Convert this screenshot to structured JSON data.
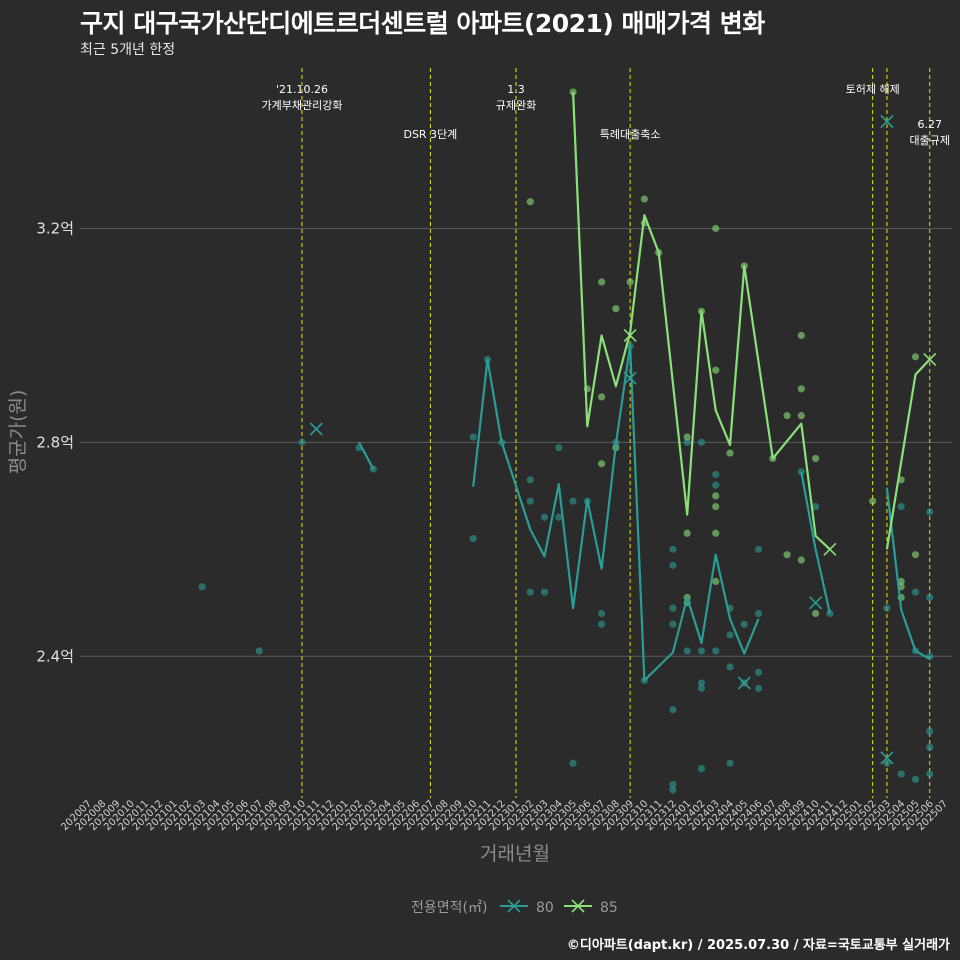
{
  "header": {
    "title": "구지 대구국가산단디에트르더센트럴 아파트(2021) 매매가격 변화",
    "subtitle": "최근 5개년 한정"
  },
  "footer": {
    "caption": "©디아파트(dapt.kr) / 2025.07.30 / 자료=국토교통부 실거래가"
  },
  "colors": {
    "background": "#2b2b2b",
    "grid": "#5a5a5a",
    "event_line": "#e6e600",
    "series_80": "#2a9d96",
    "series_85": "#8be07a"
  },
  "chart_data": {
    "type": "line",
    "title": "구지 대구국가산단디에트르더센트럴 아파트(2021) 매매가격 변화",
    "subtitle": "최근 5개년 한정",
    "xlabel": "거래년월",
    "ylabel": "평균가(원)",
    "legend_title": "전용면적(㎡)",
    "legend_position": "bottom",
    "grid": true,
    "categories": [
      "202007",
      "202008",
      "202009",
      "202010",
      "202011",
      "202012",
      "202101",
      "202102",
      "202103",
      "202104",
      "202105",
      "202106",
      "202107",
      "202108",
      "202109",
      "202110",
      "202111",
      "202112",
      "202201",
      "202202",
      "202203",
      "202204",
      "202205",
      "202206",
      "202207",
      "202208",
      "202209",
      "202210",
      "202211",
      "202212",
      "202301",
      "202302",
      "202303",
      "202304",
      "202305",
      "202306",
      "202307",
      "202308",
      "202309",
      "202310",
      "202311",
      "202312",
      "202401",
      "202402",
      "202403",
      "202404",
      "202405",
      "202406",
      "202407",
      "202408",
      "202409",
      "202410",
      "202411",
      "202412",
      "202501",
      "202502",
      "202503",
      "202504",
      "202505",
      "202506",
      "202507"
    ],
    "y_ticks": [
      2.4,
      2.8,
      3.2
    ],
    "y_tick_labels": [
      "2.4억",
      "2.8억",
      "3.2억"
    ],
    "ylim": [
      2.135,
      3.515
    ],
    "series": [
      {
        "name": "80",
        "line": [
          {
            "x": "202202",
            "y": 2.8
          },
          {
            "x": "202203",
            "y": 2.75
          },
          {
            "x": "202210",
            "y": 2.717
          },
          {
            "x": "202211",
            "y": 2.955
          },
          {
            "x": "202212",
            "y": 2.8
          },
          {
            "x": "202302",
            "y": 2.637
          },
          {
            "x": "202303",
            "y": 2.587
          },
          {
            "x": "202304",
            "y": 2.722
          },
          {
            "x": "202305",
            "y": 2.49
          },
          {
            "x": "202306",
            "y": 2.693
          },
          {
            "x": "202307",
            "y": 2.564
          },
          {
            "x": "202308",
            "y": 2.797
          },
          {
            "x": "202309",
            "y": 2.981
          },
          {
            "x": "202310",
            "y": 2.355
          },
          {
            "x": "202312",
            "y": 2.407
          },
          {
            "x": "202401",
            "y": 2.51
          },
          {
            "x": "202402",
            "y": 2.425
          },
          {
            "x": "202403",
            "y": 2.59
          },
          {
            "x": "202404",
            "y": 2.47
          },
          {
            "x": "202405",
            "y": 2.405
          },
          {
            "x": "202406",
            "y": 2.47
          },
          {
            "x": "202409",
            "y": 2.745
          },
          {
            "x": "202410",
            "y": 2.6
          },
          {
            "x": "202411",
            "y": 2.48
          },
          {
            "x": "202503",
            "y": 2.715
          },
          {
            "x": "202504",
            "y": 2.487
          },
          {
            "x": "202505",
            "y": 2.41
          },
          {
            "x": "202506",
            "y": 2.395
          }
        ],
        "points": [
          {
            "x": "202103",
            "y": 2.53
          },
          {
            "x": "202107",
            "y": 2.41
          },
          {
            "x": "202110",
            "y": 2.8
          },
          {
            "x": "202202",
            "y": 2.79
          },
          {
            "x": "202203",
            "y": 2.75
          },
          {
            "x": "202210",
            "y": 2.81
          },
          {
            "x": "202210",
            "y": 2.62
          },
          {
            "x": "202211",
            "y": 2.955
          },
          {
            "x": "202212",
            "y": 2.8
          },
          {
            "x": "202302",
            "y": 2.73
          },
          {
            "x": "202302",
            "y": 2.69
          },
          {
            "x": "202302",
            "y": 2.52
          },
          {
            "x": "202303",
            "y": 2.66
          },
          {
            "x": "202303",
            "y": 2.52
          },
          {
            "x": "202304",
            "y": 2.79
          },
          {
            "x": "202304",
            "y": 2.66
          },
          {
            "x": "202305",
            "y": 2.2
          },
          {
            "x": "202305",
            "y": 2.69
          },
          {
            "x": "202306",
            "y": 2.69
          },
          {
            "x": "202307",
            "y": 2.46
          },
          {
            "x": "202307",
            "y": 2.48
          },
          {
            "x": "202308",
            "y": 2.8
          },
          {
            "x": "202309",
            "y": 2.98
          },
          {
            "x": "202310",
            "y": 2.355
          },
          {
            "x": "202312",
            "y": 2.6
          },
          {
            "x": "202312",
            "y": 2.57
          },
          {
            "x": "202312",
            "y": 2.49
          },
          {
            "x": "202312",
            "y": 2.46
          },
          {
            "x": "202312",
            "y": 2.3
          },
          {
            "x": "202312",
            "y": 2.15
          },
          {
            "x": "202312",
            "y": 2.16
          },
          {
            "x": "202401",
            "y": 2.8
          },
          {
            "x": "202401",
            "y": 2.41
          },
          {
            "x": "202402",
            "y": 2.8
          },
          {
            "x": "202402",
            "y": 2.41
          },
          {
            "x": "202402",
            "y": 2.35
          },
          {
            "x": "202402",
            "y": 2.34
          },
          {
            "x": "202402",
            "y": 2.19
          },
          {
            "x": "202403",
            "y": 2.74
          },
          {
            "x": "202403",
            "y": 2.72
          },
          {
            "x": "202403",
            "y": 2.41
          },
          {
            "x": "202404",
            "y": 2.49
          },
          {
            "x": "202404",
            "y": 2.44
          },
          {
            "x": "202404",
            "y": 2.38
          },
          {
            "x": "202404",
            "y": 2.2
          },
          {
            "x": "202405",
            "y": 2.35
          },
          {
            "x": "202405",
            "y": 2.46
          },
          {
            "x": "202406",
            "y": 2.37
          },
          {
            "x": "202406",
            "y": 2.34
          },
          {
            "x": "202406",
            "y": 2.6
          },
          {
            "x": "202406",
            "y": 2.48
          },
          {
            "x": "202409",
            "y": 2.745
          },
          {
            "x": "202410",
            "y": 2.68
          },
          {
            "x": "202411",
            "y": 2.48
          },
          {
            "x": "202503",
            "y": 2.49
          },
          {
            "x": "202503",
            "y": 2.2
          },
          {
            "x": "202504",
            "y": 2.68
          },
          {
            "x": "202504",
            "y": 2.18
          },
          {
            "x": "202505",
            "y": 2.52
          },
          {
            "x": "202505",
            "y": 2.41
          },
          {
            "x": "202505",
            "y": 2.17
          },
          {
            "x": "202506",
            "y": 2.67
          },
          {
            "x": "202506",
            "y": 2.51
          },
          {
            "x": "202506",
            "y": 2.4
          },
          {
            "x": "202506",
            "y": 2.26
          },
          {
            "x": "202506",
            "y": 2.23
          },
          {
            "x": "202506",
            "y": 2.18
          }
        ],
        "x_marks": [
          {
            "x": "202111",
            "y": 2.825
          },
          {
            "x": "202309",
            "y": 2.92
          },
          {
            "x": "202405",
            "y": 2.35
          },
          {
            "x": "202410",
            "y": 2.5
          },
          {
            "x": "202503",
            "y": 3.4
          },
          {
            "x": "202503",
            "y": 2.21
          }
        ]
      },
      {
        "name": "85",
        "line": [
          {
            "x": "202302",
            "y": 3.25
          },
          {
            "x": "202305",
            "y": 3.455
          },
          {
            "x": "202306",
            "y": 2.83
          },
          {
            "x": "202307",
            "y": 3.0
          },
          {
            "x": "202308",
            "y": 2.905
          },
          {
            "x": "202309",
            "y": 3.005
          },
          {
            "x": "202310",
            "y": 3.225
          },
          {
            "x": "202311",
            "y": 3.155
          },
          {
            "x": "202401",
            "y": 2.665
          },
          {
            "x": "202402",
            "y": 3.045
          },
          {
            "x": "202403",
            "y": 2.86
          },
          {
            "x": "202404",
            "y": 2.795
          },
          {
            "x": "202405",
            "y": 3.13
          },
          {
            "x": "202407",
            "y": 2.77
          },
          {
            "x": "202409",
            "y": 2.835
          },
          {
            "x": "202410",
            "y": 2.625
          },
          {
            "x": "202411",
            "y": 2.6
          },
          {
            "x": "202503",
            "y": 2.6
          },
          {
            "x": "202505",
            "y": 2.927
          },
          {
            "x": "202506",
            "y": 2.955
          }
        ],
        "points": [
          {
            "x": "202302",
            "y": 3.25
          },
          {
            "x": "202305",
            "y": 3.455
          },
          {
            "x": "202306",
            "y": 2.9
          },
          {
            "x": "202307",
            "y": 2.76
          },
          {
            "x": "202307",
            "y": 3.1
          },
          {
            "x": "202307",
            "y": 2.885
          },
          {
            "x": "202308",
            "y": 3.05
          },
          {
            "x": "202308",
            "y": 2.79
          },
          {
            "x": "202309",
            "y": 3.1
          },
          {
            "x": "202310",
            "y": 3.255
          },
          {
            "x": "202310",
            "y": 3.21
          },
          {
            "x": "202311",
            "y": 3.155
          },
          {
            "x": "202401",
            "y": 2.81
          },
          {
            "x": "202401",
            "y": 2.63
          },
          {
            "x": "202401",
            "y": 2.51
          },
          {
            "x": "202401",
            "y": 2.5
          },
          {
            "x": "202402",
            "y": 3.045
          },
          {
            "x": "202403",
            "y": 3.2
          },
          {
            "x": "202403",
            "y": 2.935
          },
          {
            "x": "202403",
            "y": 2.7
          },
          {
            "x": "202403",
            "y": 2.68
          },
          {
            "x": "202403",
            "y": 2.63
          },
          {
            "x": "202403",
            "y": 2.54
          },
          {
            "x": "202404",
            "y": 2.78
          },
          {
            "x": "202405",
            "y": 3.13
          },
          {
            "x": "202407",
            "y": 2.77
          },
          {
            "x": "202408",
            "y": 2.85
          },
          {
            "x": "202408",
            "y": 2.59
          },
          {
            "x": "202409",
            "y": 3.0
          },
          {
            "x": "202409",
            "y": 2.9
          },
          {
            "x": "202409",
            "y": 2.85
          },
          {
            "x": "202409",
            "y": 2.58
          },
          {
            "x": "202410",
            "y": 2.77
          },
          {
            "x": "202410",
            "y": 2.48
          },
          {
            "x": "202502",
            "y": 2.69
          },
          {
            "x": "202504",
            "y": 2.73
          },
          {
            "x": "202504",
            "y": 2.54
          },
          {
            "x": "202504",
            "y": 2.53
          },
          {
            "x": "202504",
            "y": 2.51
          },
          {
            "x": "202505",
            "y": 2.96
          },
          {
            "x": "202505",
            "y": 2.59
          }
        ],
        "x_marks": [
          {
            "x": "202309",
            "y": 3.0
          },
          {
            "x": "202411",
            "y": 2.6
          },
          {
            "x": "202506",
            "y": 2.955
          }
        ]
      }
    ],
    "events": [
      {
        "x": "202110",
        "label": "'21.10.26\n가계부채관리강화",
        "row": 1
      },
      {
        "x": "202207",
        "label": "DSR 3단계",
        "row": 2
      },
      {
        "x": "202301",
        "label": "1.3\n규제완화",
        "row": 1
      },
      {
        "x": "202309",
        "label": "특례대출축소",
        "row": 2
      },
      {
        "x": "202502",
        "label": "토허제 해제",
        "row": 1
      },
      {
        "x": "202503",
        "label": "",
        "row": 1
      },
      {
        "x": "202506",
        "label": "6.27\n대출규제",
        "row": 3
      }
    ]
  }
}
